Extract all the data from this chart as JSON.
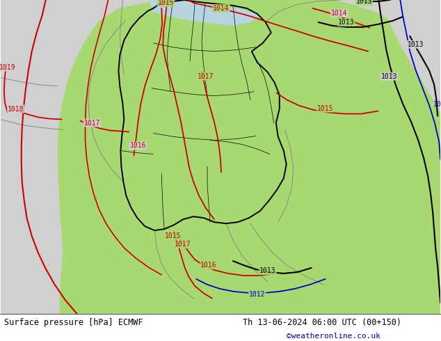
{
  "title_left": "Surface pressure [hPa] ECMWF",
  "title_right": "Th 13-06-2024 06:00 UTC (00+150)",
  "watermark": "©weatheronline.co.uk",
  "green_color": "#a8d870",
  "gray_color": "#d0d0d0",
  "sea_color": "#b8d4e0",
  "white_color": "#ffffff",
  "red_isobar": "#cc0000",
  "black_isobar": "#000000",
  "blue_isobar": "#0000cc",
  "watermark_color": "#0000bb"
}
